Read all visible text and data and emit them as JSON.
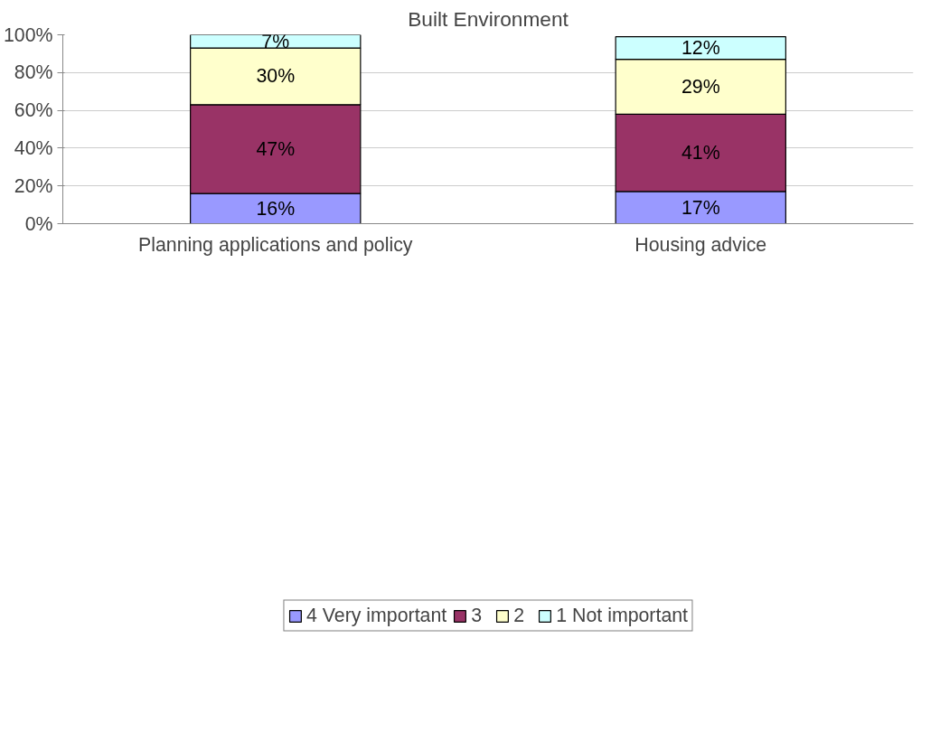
{
  "chart_data": {
    "type": "bar",
    "title": "Built Environment",
    "stacked": true,
    "categories": [
      "Planning applications and policy",
      "Housing advice"
    ],
    "series": [
      {
        "name": "4 Very important",
        "color": "#9999ff",
        "values": [
          16,
          17
        ],
        "value_labels": [
          "16%",
          "17%"
        ]
      },
      {
        "name": "3",
        "color": "#993366",
        "values": [
          47,
          41
        ],
        "value_labels": [
          "47%",
          "41%"
        ]
      },
      {
        "name": "2",
        "color": "#ffffcc",
        "values": [
          30,
          29
        ],
        "value_labels": [
          "30%",
          "29%"
        ]
      },
      {
        "name": "1 Not important",
        "color": "#ccffff",
        "values": [
          7,
          12
        ],
        "value_labels": [
          "7%",
          "12%"
        ]
      }
    ],
    "ylim": [
      0,
      100
    ],
    "yticks": [
      {
        "value": 0,
        "label": "0%"
      },
      {
        "value": 20,
        "label": "20%"
      },
      {
        "value": 40,
        "label": "40%"
      },
      {
        "value": 60,
        "label": "60%"
      },
      {
        "value": 80,
        "label": "80%"
      },
      {
        "value": 100,
        "label": "100%"
      }
    ],
    "grid": "y",
    "legend": "bottom"
  }
}
